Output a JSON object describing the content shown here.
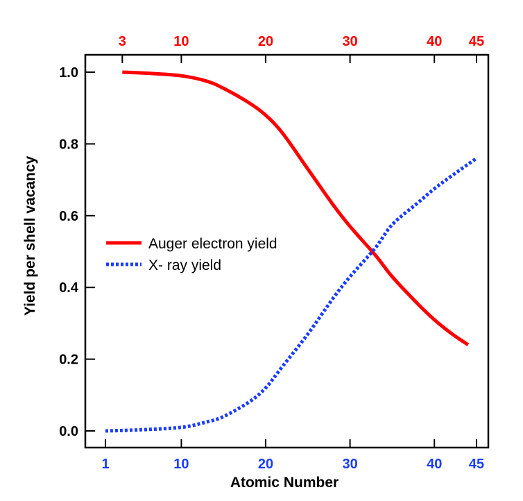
{
  "chart_data": {
    "type": "line",
    "title": "",
    "xlabel": "Atomic Number",
    "ylabel": "Yield per shell vacancy",
    "xlim": [
      1,
      45
    ],
    "ylim": [
      0,
      1.0
    ],
    "x_ticks": [
      "1",
      "10",
      "20",
      "30",
      "40",
      "45"
    ],
    "x_tick_values": [
      1,
      10,
      20,
      30,
      40,
      45
    ],
    "top_ticks": [
      "3",
      "10",
      "20",
      "30",
      "40",
      "45"
    ],
    "top_tick_values": [
      3,
      10,
      20,
      30,
      40,
      45
    ],
    "y_ticks": [
      "0.0",
      "0.2",
      "0.4",
      "0.6",
      "0.8",
      "1.0"
    ],
    "y_tick_values": [
      0,
      0.2,
      0.4,
      0.6,
      0.8,
      1.0
    ],
    "grid": false,
    "legend_position": "center-left",
    "colors": {
      "auger": "#ff0000",
      "xray": "#1a3cff",
      "bottom_ticks": "#1a3cff",
      "top_ticks": "#ff0000"
    },
    "series": [
      {
        "name": "Auger electron yield",
        "style": "solid",
        "x": [
          3,
          6,
          10,
          13,
          15,
          18,
          20,
          22,
          25,
          28,
          30,
          33,
          35,
          38,
          40,
          42,
          44
        ],
        "y": [
          1.0,
          0.997,
          0.99,
          0.975,
          0.955,
          0.915,
          0.88,
          0.83,
          0.73,
          0.63,
          0.57,
          0.49,
          0.43,
          0.355,
          0.31,
          0.272,
          0.24
        ]
      },
      {
        "name": "X- ray yield",
        "style": "dotted",
        "x": [
          1,
          5,
          10,
          13,
          15,
          18,
          20,
          22,
          25,
          28,
          30,
          33,
          35,
          38,
          40,
          42,
          45
        ],
        "y": [
          0.0,
          0.003,
          0.01,
          0.025,
          0.04,
          0.08,
          0.12,
          0.18,
          0.27,
          0.37,
          0.43,
          0.51,
          0.575,
          0.635,
          0.675,
          0.71,
          0.76
        ]
      }
    ]
  }
}
